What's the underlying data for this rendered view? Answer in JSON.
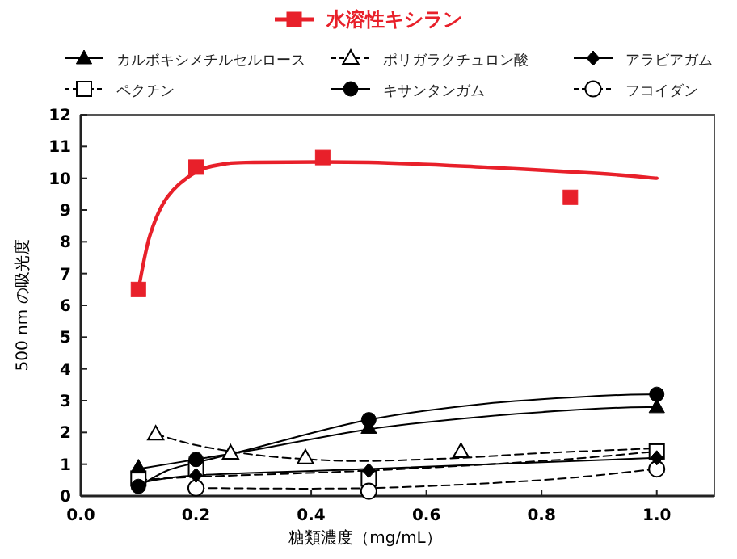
{
  "chart_data": {
    "type": "scatter",
    "xlabel": "糖類濃度（mg/mL）",
    "ylabel": "500 nm の吸光度",
    "xlim": [
      0,
      1.1
    ],
    "ylim": [
      0,
      12
    ],
    "xticks": [
      {
        "value": 0,
        "label": "0.0"
      },
      {
        "value": 0.2,
        "label": "0.2"
      },
      {
        "value": 0.4,
        "label": "0.4"
      },
      {
        "value": 0.6,
        "label": "0.6"
      },
      {
        "value": 0.8,
        "label": "0.8"
      },
      {
        "value": 1,
        "label": "1.0"
      }
    ],
    "yticks": [
      0,
      1,
      2,
      3,
      4,
      5,
      6,
      7,
      8,
      9,
      10,
      11,
      12
    ],
    "legend": "top",
    "grid": false,
    "series": [
      {
        "name": "水溶性キシラン",
        "color": "#e8202a",
        "marker": "square",
        "line_style": "solid",
        "x": [
          0.1,
          0.2,
          0.42,
          0.85
        ],
        "values": [
          6.5,
          10.35,
          10.65,
          9.4
        ]
      },
      {
        "name": "カルボキシメチルセルロース",
        "color": "#000000",
        "marker": "triangle",
        "line_style": "solid",
        "x": [
          0.1,
          0.5,
          1.0
        ],
        "values": [
          0.9,
          2.15,
          2.8
        ]
      },
      {
        "name": "ポリガラクチュロン酸",
        "color": "#000000",
        "marker": "triangle-open",
        "line_style": "dashed",
        "x": [
          0.13,
          0.26,
          0.39,
          0.66
        ],
        "values": [
          1.95,
          1.35,
          1.2,
          1.4
        ]
      },
      {
        "name": "アラビアガム",
        "color": "#000000",
        "marker": "diamond",
        "line_style": "solid",
        "x": [
          0.2,
          0.5,
          1.0
        ],
        "values": [
          0.65,
          0.8,
          1.2
        ]
      },
      {
        "name": "ペクチン",
        "color": "#000000",
        "marker": "square-open",
        "line_style": "dashed",
        "x": [
          0.1,
          0.2,
          0.5,
          1.0
        ],
        "values": [
          0.55,
          0.85,
          0.55,
          1.4
        ]
      },
      {
        "name": "キサンタンガム",
        "color": "#000000",
        "marker": "circle",
        "line_style": "solid",
        "x": [
          0.1,
          0.2,
          0.5,
          1.0
        ],
        "values": [
          0.3,
          1.15,
          2.4,
          3.2
        ]
      },
      {
        "name": "フコイダン",
        "color": "#000000",
        "marker": "circle-open",
        "line_style": "dashed",
        "x": [
          0.2,
          0.5,
          1.0
        ],
        "values": [
          0.25,
          0.15,
          0.85
        ]
      },
      {
        "type": "line",
        "color": "#e8202a",
        "line_style": "solid",
        "x": [
          0.1,
          0.12,
          0.15,
          0.2,
          0.25,
          0.3,
          0.5,
          0.7,
          0.9,
          1.0
        ],
        "values": [
          6.5,
          8.2,
          9.4,
          10.2,
          10.45,
          10.5,
          10.5,
          10.35,
          10.15,
          10.0
        ]
      },
      {
        "type": "line",
        "color": "#000000",
        "line_style": "solid",
        "x": [
          0.1,
          0.2,
          0.3,
          0.5,
          0.7,
          0.9,
          1.0
        ],
        "values": [
          0.85,
          1.15,
          1.45,
          2.1,
          2.5,
          2.75,
          2.8
        ]
      },
      {
        "type": "line",
        "color": "#000000",
        "line_style": "dashed",
        "x": [
          0.13,
          0.2,
          0.3,
          0.4,
          0.5,
          0.66,
          0.8,
          1.0
        ],
        "values": [
          1.95,
          1.6,
          1.3,
          1.15,
          1.1,
          1.2,
          1.35,
          1.5
        ]
      },
      {
        "type": "line",
        "color": "#000000",
        "line_style": "solid",
        "x": [
          0.1,
          0.2,
          0.5,
          1.0
        ],
        "values": [
          0.4,
          0.65,
          0.85,
          1.2
        ]
      },
      {
        "type": "line",
        "color": "#000000",
        "line_style": "dashed",
        "x": [
          0.1,
          0.2,
          0.5,
          0.8,
          1.0
        ],
        "values": [
          0.5,
          0.6,
          0.8,
          1.1,
          1.4
        ]
      },
      {
        "type": "line",
        "color": "#000000",
        "line_style": "solid",
        "x": [
          0.1,
          0.15,
          0.2,
          0.3,
          0.5,
          0.7,
          0.9,
          1.0
        ],
        "values": [
          0.3,
          0.8,
          1.05,
          1.5,
          2.4,
          2.9,
          3.15,
          3.2
        ]
      },
      {
        "type": "line",
        "color": "#000000",
        "line_style": "dashed",
        "x": [
          0.2,
          0.5,
          0.8,
          1.0
        ],
        "values": [
          0.25,
          0.25,
          0.5,
          0.85
        ]
      }
    ]
  }
}
